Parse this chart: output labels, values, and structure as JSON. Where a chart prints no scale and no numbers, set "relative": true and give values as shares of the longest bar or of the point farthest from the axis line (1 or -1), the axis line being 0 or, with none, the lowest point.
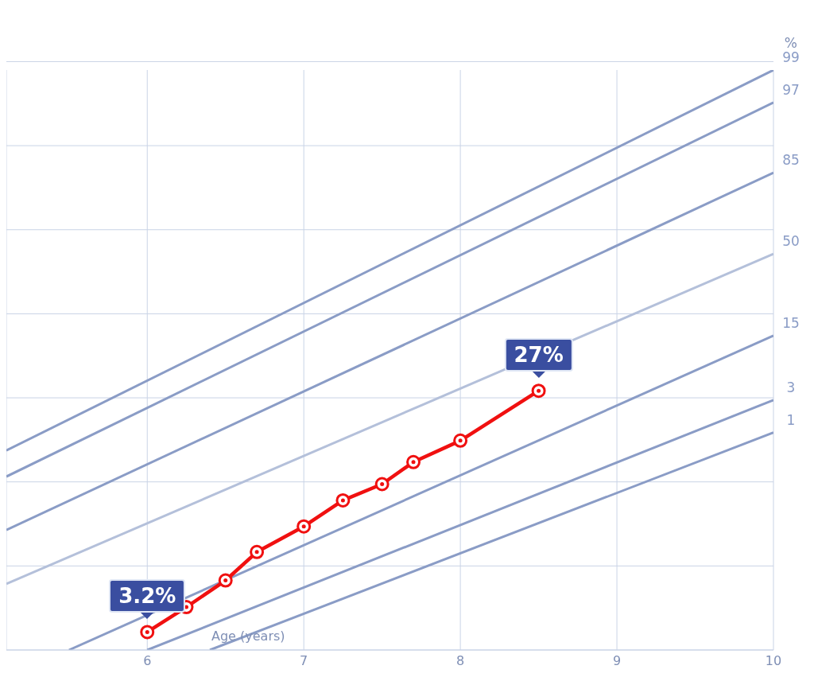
{
  "chart_data": {
    "type": "line",
    "relative": true,
    "xlabel": "Age (years)",
    "xlim": [
      5.1,
      10
    ],
    "xticks": [
      6,
      7,
      8,
      9,
      10
    ],
    "grid": true,
    "annotations": [
      "%",
      {
        "text": "3.2%",
        "x": 6,
        "y": 0.031
      },
      {
        "text": "27%",
        "x": 8.5,
        "y": 0.447
      }
    ],
    "series": [
      {
        "name": "99",
        "color": "#8a9cc6",
        "x": [
          5.1,
          10
        ],
        "values": [
          0.344,
          1
        ],
        "marker": "none"
      },
      {
        "name": "97",
        "color": "#8a9cc6",
        "x": [
          5.1,
          10
        ],
        "values": [
          0.299,
          0.944
        ],
        "marker": "none"
      },
      {
        "name": "85",
        "color": "#8a9cc6",
        "x": [
          5.1,
          10
        ],
        "values": [
          0.207,
          0.823
        ],
        "marker": "none"
      },
      {
        "name": "50",
        "color": "#b4c0da",
        "x": [
          5.1,
          10
        ],
        "values": [
          0.114,
          0.683
        ],
        "marker": "none"
      },
      {
        "name": "15",
        "color": "#8a9cc6",
        "x": [
          5.5,
          10
        ],
        "values": [
          0,
          0.542
        ],
        "marker": "none"
      },
      {
        "name": "3",
        "color": "#8a9cc6",
        "x": [
          6,
          10
        ],
        "values": [
          0,
          0.431
        ],
        "marker": "none"
      },
      {
        "name": "1",
        "color": "#8a9cc6",
        "x": [
          6.4,
          10
        ],
        "values": [
          0,
          0.375
        ],
        "marker": "none"
      },
      {
        "color": "#f01010",
        "x": [
          6,
          6.25,
          6.5,
          6.7,
          7,
          7.25,
          7.5,
          7.7,
          8,
          8.5
        ],
        "values": [
          0.031,
          0.074,
          0.12,
          0.169,
          0.213,
          0.258,
          0.286,
          0.324,
          0.361,
          0.447
        ],
        "marker": "circle"
      }
    ]
  }
}
